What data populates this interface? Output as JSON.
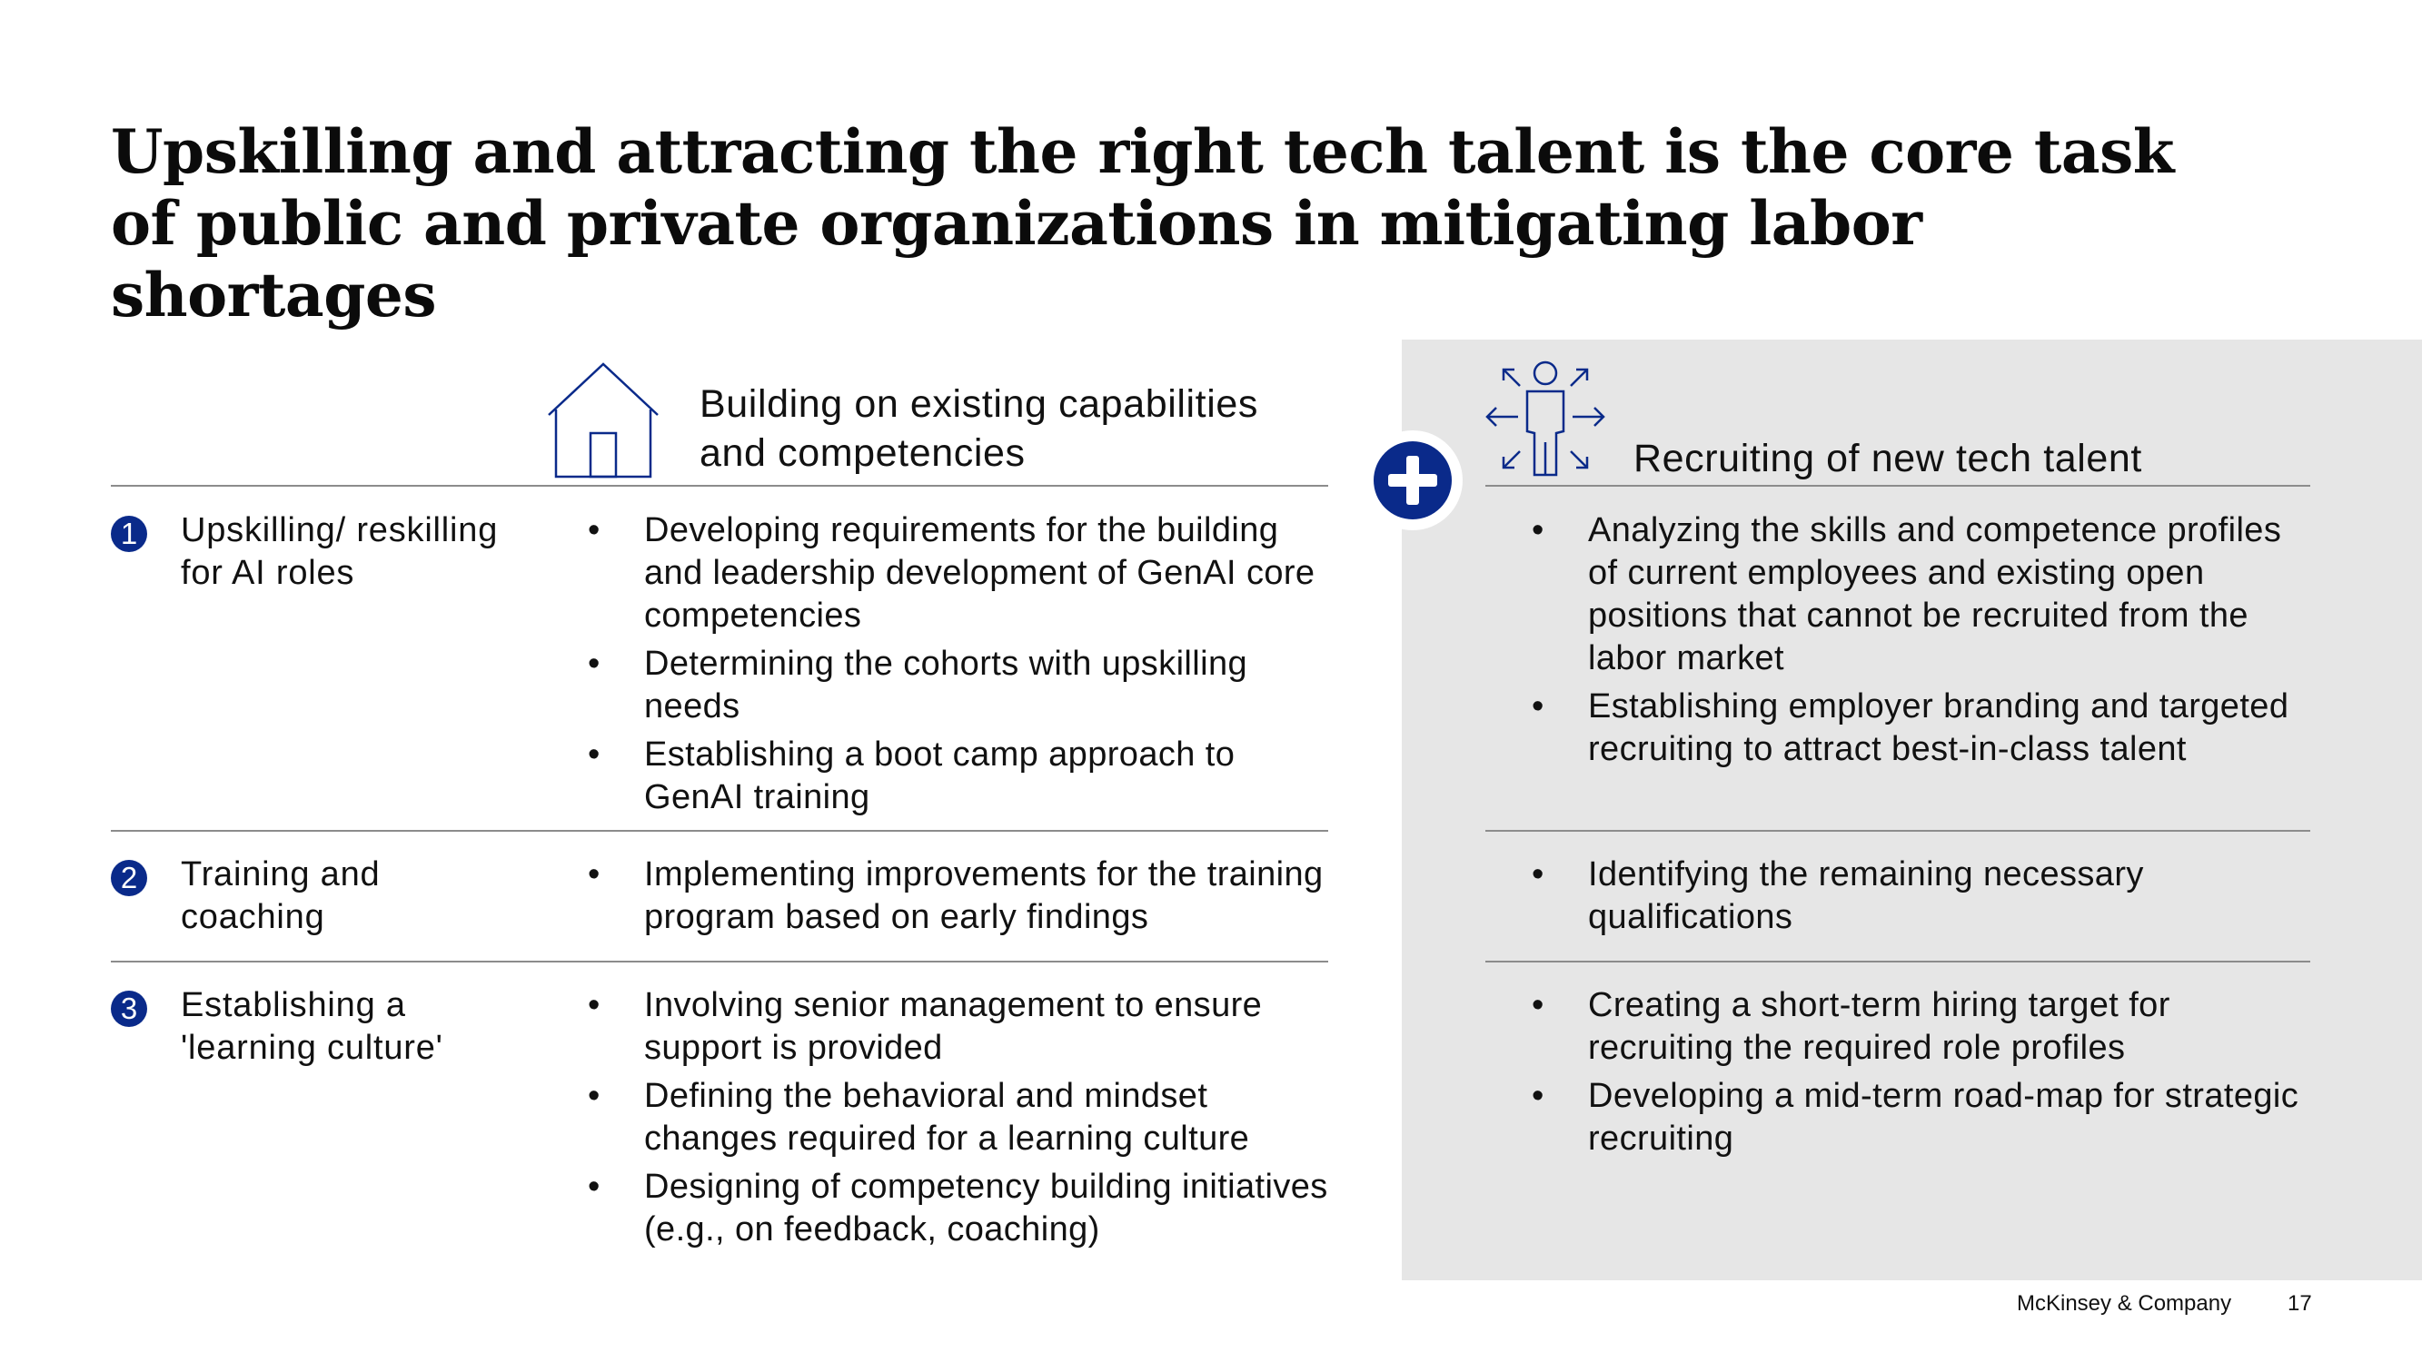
{
  "title": "Upskilling and attracting the right tech talent is the core task of public and private organizations in mitigating labor shortages",
  "left_column": {
    "icon": "house-icon",
    "heading": "Building on existing capabilities and competencies"
  },
  "right_column": {
    "icon": "person-expand-icon",
    "heading": "Recruiting of new tech talent"
  },
  "connector_icon": "plus-icon",
  "colors": {
    "accent": "#0a2a8a",
    "panel": "#e6e6e6",
    "rule": "#8c8c8c"
  },
  "rows": [
    {
      "number": "1",
      "label": "Upskilling/ reskilling for AI roles",
      "left_bullets": [
        "Developing requirements for the building and leadership development of GenAI core competencies",
        "Determining the cohorts with upskilling needs",
        "Establishing a boot camp approach to GenAI training"
      ],
      "right_bullets": [
        "Analyzing the skills and competence profiles of current employees and existing open positions that cannot be recruited from the labor market",
        "Establishing employer branding and targeted recruiting to attract best-in-class talent"
      ]
    },
    {
      "number": "2",
      "label": "Training and coaching",
      "left_bullets": [
        "Implementing improvements for the training program based on early findings"
      ],
      "right_bullets": [
        "Identifying the remaining necessary qualifications"
      ]
    },
    {
      "number": "3",
      "label": "Establishing a 'learning culture'",
      "left_bullets": [
        "Involving senior management to ensure support is provided",
        "Defining the behavioral and mindset changes required for a learning culture",
        "Designing of competency building initiatives (e.g., on feedback, coaching)"
      ],
      "right_bullets": [
        "Creating a short-term hiring target for recruiting the required role profiles",
        "Developing a mid-term road-map for strategic recruiting"
      ]
    }
  ],
  "footer": {
    "brand": "McKinsey & Company",
    "page": "17"
  }
}
